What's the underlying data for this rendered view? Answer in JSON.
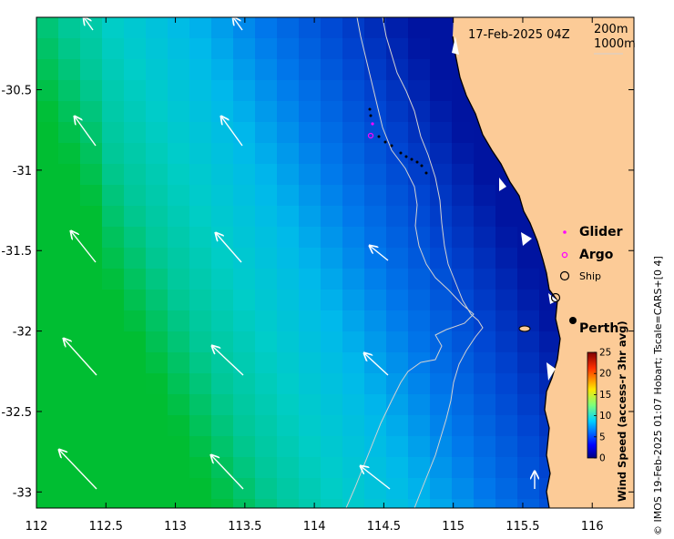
{
  "map": {
    "timestamp": "17-Feb-2025 04Z",
    "contour_labels": [
      "200m",
      "1000m"
    ],
    "x_ticks": [
      "112",
      "112.5",
      "113",
      "113.5",
      "114",
      "114.5",
      "115",
      "115.5",
      "116"
    ],
    "y_ticks": [
      "-30.5",
      "-31",
      "-31.5",
      "-32",
      "-32.5",
      "-33"
    ],
    "x_tick_values": [
      112,
      112.5,
      113,
      113.5,
      114,
      114.5,
      115,
      115.5,
      116
    ],
    "y_tick_values": [
      -30.5,
      -31,
      -31.5,
      -32,
      -32.5,
      -33
    ],
    "lon_range": [
      112,
      116.3
    ],
    "lat_range": [
      -33.1,
      -30.05
    ],
    "legend": {
      "glider": "Glider",
      "argo": "Argo",
      "ship": "Ship"
    },
    "place_label": "Perth",
    "colorbar": {
      "title": "Wind Speed (access-r 3hr avg)",
      "ticks": [
        "25",
        "20",
        "15",
        "10",
        "5",
        "0"
      ],
      "range": [
        0,
        25
      ]
    },
    "credit": "© IMOS 19-Feb-2025 01:07 Hobart; Tscale=CARS+[0 4]",
    "colors": {
      "land": "#fccb97",
      "contour": "#d2d2d2",
      "glider": "#ff00ff"
    }
  }
}
